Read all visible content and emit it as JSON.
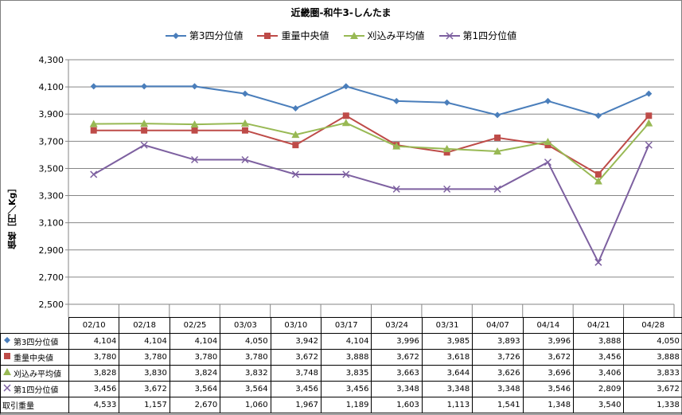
{
  "chart_data": {
    "type": "line",
    "title": "近畿圏-和牛3-しんたま",
    "ylabel": "価格［円／Kg］",
    "ylim": [
      2500,
      4300
    ],
    "yticks": [
      2500,
      2700,
      2900,
      3100,
      3300,
      3500,
      3700,
      3900,
      4100,
      4300
    ],
    "ytick_labels": [
      "2,500",
      "2,700",
      "2,900",
      "3,100",
      "3,300",
      "3,500",
      "3,700",
      "3,900",
      "4,100",
      "4,300"
    ],
    "grid": true,
    "legend": "top",
    "categories": [
      "02/10",
      "02/18",
      "02/25",
      "03/03",
      "03/10",
      "03/17",
      "03/24",
      "03/31",
      "04/07",
      "04/14",
      "04/21",
      "04/28"
    ],
    "series": [
      {
        "name": "第3四分位値",
        "color": "#4a7ebb",
        "marker": "diamond",
        "values": [
          4104,
          4104,
          4104,
          4050,
          3942,
          4104,
          3996,
          3985,
          3893,
          3996,
          3888,
          4050
        ],
        "labels": [
          "4,104",
          "4,104",
          "4,104",
          "4,050",
          "3,942",
          "4,104",
          "3,996",
          "3,985",
          "3,893",
          "3,996",
          "3,888",
          "4,050"
        ]
      },
      {
        "name": "重量中央値",
        "color": "#be4b48",
        "marker": "square",
        "values": [
          3780,
          3780,
          3780,
          3780,
          3672,
          3888,
          3672,
          3618,
          3726,
          3672,
          3456,
          3888
        ],
        "labels": [
          "3,780",
          "3,780",
          "3,780",
          "3,780",
          "3,672",
          "3,888",
          "3,672",
          "3,618",
          "3,726",
          "3,672",
          "3,456",
          "3,888"
        ]
      },
      {
        "name": "刈込み平均値",
        "color": "#98b954",
        "marker": "triangle",
        "values": [
          3828,
          3830,
          3824,
          3832,
          3748,
          3835,
          3663,
          3644,
          3626,
          3696,
          3406,
          3833
        ],
        "labels": [
          "3,828",
          "3,830",
          "3,824",
          "3,832",
          "3,748",
          "3,835",
          "3,663",
          "3,644",
          "3,626",
          "3,696",
          "3,406",
          "3,833"
        ]
      },
      {
        "name": "第1四分位値",
        "color": "#7d60a0",
        "marker": "x",
        "values": [
          3456,
          3672,
          3564,
          3564,
          3456,
          3456,
          3348,
          3348,
          3348,
          3546,
          2809,
          3672
        ],
        "labels": [
          "3,456",
          "3,672",
          "3,564",
          "3,564",
          "3,456",
          "3,456",
          "3,348",
          "3,348",
          "3,348",
          "3,546",
          "2,809",
          "3,672"
        ]
      }
    ],
    "table_extra_row": {
      "name": "取引重量",
      "labels": [
        "4,533",
        "1,157",
        "2,670",
        "1,060",
        "1,967",
        "1,189",
        "1,603",
        "1,113",
        "1,541",
        "1,348",
        "3,540",
        "1,338"
      ]
    }
  }
}
